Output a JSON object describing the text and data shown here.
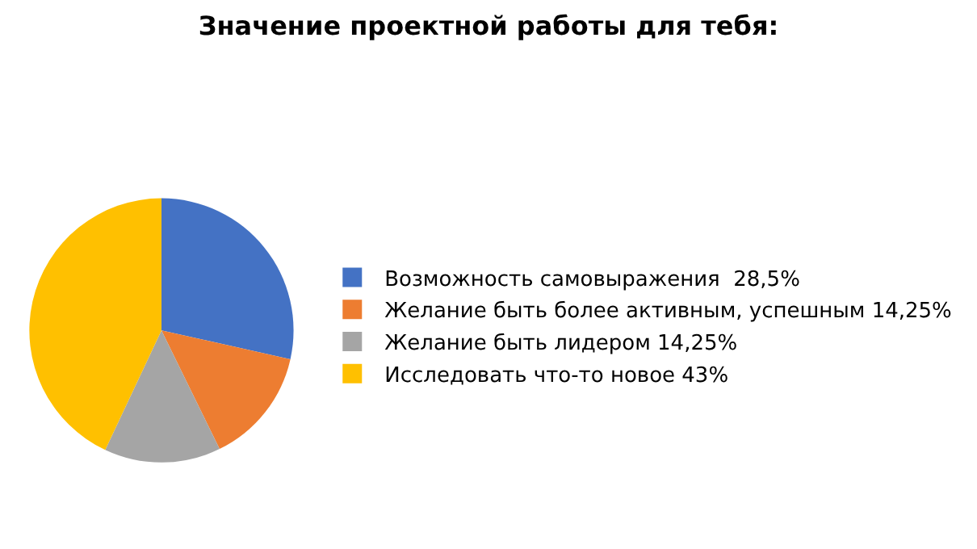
{
  "chart_data": {
    "type": "pie",
    "title": "Значение проектной работы для тебя:",
    "categories": [
      "Возможность самовыражения  28,5%",
      "Желание быть более активным, успешным 14,25%",
      "Желание быть лидером 14,25%",
      "Исследовать что-то новое 43%"
    ],
    "values": [
      28.5,
      14.25,
      14.25,
      43
    ],
    "colors": [
      "#4472c4",
      "#ed7d31",
      "#a5a5a5",
      "#ffc000"
    ],
    "legend": "right"
  }
}
